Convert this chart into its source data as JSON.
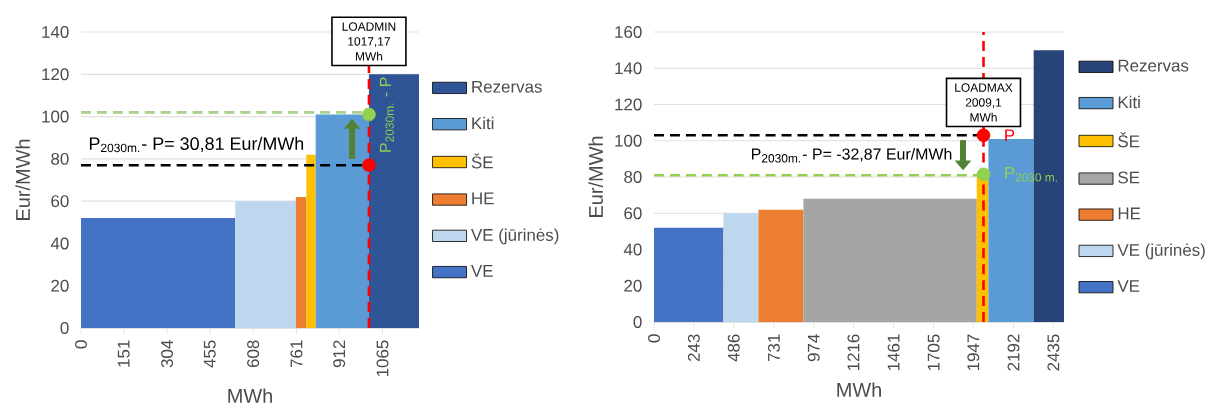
{
  "chart_data": [
    {
      "type": "area",
      "xlabel": "MWh",
      "ylabel": "Eur/MWh",
      "xlim": [
        0,
        1194
      ],
      "ylim": [
        0,
        140
      ],
      "xticks": [
        0,
        151,
        304,
        455,
        608,
        761,
        912,
        1065
      ],
      "yticks": [
        0,
        20,
        40,
        60,
        80,
        100,
        120,
        140
      ],
      "grid": "y",
      "legend": "right",
      "series": [
        {
          "name": "VE",
          "color": "#4472c4",
          "x": [
            0,
            545
          ],
          "values": [
            52,
            52
          ]
        },
        {
          "name": "VE (jūrinės)",
          "color": "#bdd7ee",
          "x": [
            545,
            759
          ],
          "values": [
            60,
            60
          ]
        },
        {
          "name": "HE",
          "color": "#ed7d31",
          "x": [
            759,
            796
          ],
          "values": [
            62,
            62
          ]
        },
        {
          "name": "ŠE",
          "color": "#ffc000",
          "x": [
            796,
            829
          ],
          "values": [
            82,
            82
          ]
        },
        {
          "name": "Kiti",
          "color": "#5b9bd5",
          "x": [
            829,
            1017.17
          ],
          "values": [
            101,
            101
          ]
        },
        {
          "name": "Rezervas",
          "color": "#2f5597",
          "x": [
            1017.17,
            1194
          ],
          "values": [
            120,
            120
          ]
        },
        {
          "type": "scatter",
          "marker": "circle",
          "color": "#ff0000",
          "x": [
            1017.17
          ],
          "values": [
            77
          ]
        },
        {
          "type": "scatter",
          "marker": "circle",
          "color": "#92d050",
          "x": [
            1017.17
          ],
          "values": [
            101
          ]
        }
      ],
      "ref_lines": [
        {
          "axis": "y",
          "value": 77,
          "color": "#000000",
          "line_style": "dashed"
        },
        {
          "axis": "y",
          "value": 102,
          "color": "#a9d18e",
          "line_style": "dashed"
        },
        {
          "axis": "x",
          "value": 1017.17,
          "label": "LOADMIN 1017,17 MWh",
          "color": "#ff0000",
          "line_style": "dashed"
        }
      ],
      "annotations": [
        "P$_{2030m.}$- P= 30,81 Eur/MWh",
        "P$_{2030m.}$ - P"
      ]
    },
    {
      "type": "area",
      "xlabel": "MWh",
      "ylabel": "Eur/MWh",
      "xlim": [
        0,
        2500
      ],
      "ylim": [
        0,
        160
      ],
      "xticks": [
        0,
        243,
        486,
        731,
        974,
        1216,
        1461,
        1705,
        1947,
        2192,
        2435
      ],
      "yticks": [
        0,
        20,
        40,
        60,
        80,
        100,
        120,
        140,
        160
      ],
      "grid": "y",
      "legend": "right",
      "series": [
        {
          "name": "VE",
          "color": "#4472c4",
          "x": [
            0,
            423
          ],
          "values": [
            52,
            52
          ]
        },
        {
          "name": "VE (jūrinės)",
          "color": "#bdd7ee",
          "x": [
            423,
            637
          ],
          "values": [
            60,
            60
          ]
        },
        {
          "name": "HE",
          "color": "#ed7d31",
          "x": [
            637,
            911
          ],
          "values": [
            62,
            62
          ]
        },
        {
          "name": "SE",
          "color": "#a5a5a5",
          "x": [
            911,
            1968
          ],
          "values": [
            68,
            68
          ]
        },
        {
          "name": "ŠE",
          "color": "#ffc000",
          "x": [
            1968,
            2039
          ],
          "values": [
            81.5,
            81.5
          ]
        },
        {
          "name": "Kiti",
          "color": "#5b9bd5",
          "x": [
            2039,
            2315
          ],
          "values": [
            101,
            101
          ]
        },
        {
          "name": "Rezervas",
          "color": "#264478",
          "x": [
            2315,
            2500
          ],
          "values": [
            150,
            150
          ]
        },
        {
          "type": "scatter",
          "marker": "circle",
          "color": "#ff0000",
          "x": [
            2009.1
          ],
          "values": [
            103
          ]
        },
        {
          "type": "scatter",
          "marker": "circle",
          "color": "#92d050",
          "x": [
            2009.1
          ],
          "values": [
            81.5
          ]
        }
      ],
      "ref_lines": [
        {
          "axis": "y",
          "value": 103,
          "color": "#000000",
          "line_style": "dashed"
        },
        {
          "axis": "y",
          "value": 81,
          "color": "#92d050",
          "line_style": "dashed"
        },
        {
          "axis": "x",
          "value": 2009.1,
          "label": "LOADMAX 2009,1 MWh",
          "color": "#ff0000",
          "line_style": "dashed"
        }
      ],
      "annotations": [
        "P$_{2030m.}$- P= -32,87 Eur/MWh",
        {
          "text": "P",
          "x": 2009.1,
          "y": 103
        },
        {
          "text": "P$_{2030 m.}$",
          "x": 2009.1,
          "y": 81.5
        }
      ]
    }
  ]
}
